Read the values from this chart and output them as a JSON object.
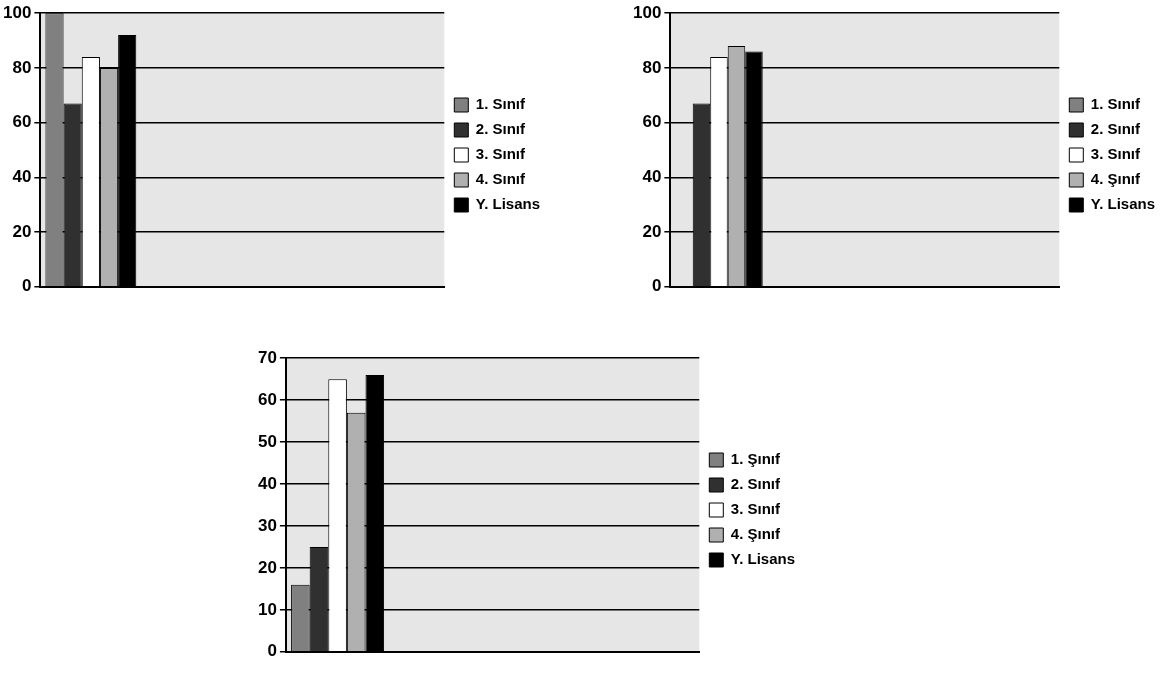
{
  "chart_data": [
    {
      "type": "bar",
      "categories": [
        null,
        null,
        null,
        null
      ],
      "ylim": [
        0,
        100
      ],
      "yticks": [
        0,
        20,
        40,
        60,
        80,
        100
      ],
      "grid": "y",
      "legend": "right",
      "tick_labels": "y",
      "series": [
        {
          "name": "1. Sınıf",
          "color": "#808080",
          "values": [
            100,
            null,
            null,
            null
          ]
        },
        {
          "name": "2. Sınıf",
          "color": "#303030",
          "values": [
            67,
            null,
            null,
            null
          ]
        },
        {
          "name": "3. Sınıf",
          "color": "#ffffff",
          "values": [
            84,
            null,
            null,
            null
          ]
        },
        {
          "name": "4. Sınıf",
          "color": "#b0b0b0",
          "values": [
            80,
            null,
            null,
            null
          ]
        },
        {
          "name": "Y. Lisans",
          "color": "#000000",
          "values": [
            92,
            null,
            null,
            null
          ]
        }
      ]
    },
    {
      "type": "bar",
      "categories": [
        null,
        null,
        null,
        null
      ],
      "ylim": [
        0,
        100
      ],
      "yticks": [
        0,
        20,
        40,
        60,
        80,
        100
      ],
      "grid": "y",
      "legend": "right",
      "tick_labels": "y",
      "series": [
        {
          "name": "1. Sınıf",
          "color": "#808080",
          "values": [
            0,
            null,
            null,
            null
          ]
        },
        {
          "name": "2. Sınıf",
          "color": "#303030",
          "values": [
            67,
            null,
            null,
            null
          ]
        },
        {
          "name": "3. Sınıf",
          "color": "#ffffff",
          "values": [
            84,
            null,
            null,
            null
          ]
        },
        {
          "name": "4. Şınıf",
          "color": "#b0b0b0",
          "values": [
            88,
            null,
            null,
            null
          ]
        },
        {
          "name": "Y. Lisans",
          "color": "#000000",
          "values": [
            86,
            null,
            null,
            null
          ]
        }
      ]
    },
    {
      "type": "bar",
      "categories": [
        null,
        null,
        null,
        null
      ],
      "ylim": [
        0,
        70
      ],
      "yticks": [
        0,
        10,
        20,
        30,
        40,
        50,
        60,
        70
      ],
      "grid": "y",
      "legend": "right",
      "tick_labels": "y",
      "series": [
        {
          "name": "1. Şınıf",
          "color": "#808080",
          "values": [
            16,
            null,
            null,
            null
          ]
        },
        {
          "name": "2. Sınıf",
          "color": "#303030",
          "values": [
            25,
            null,
            null,
            null
          ]
        },
        {
          "name": "3. Sınıf",
          "color": "#ffffff",
          "values": [
            65,
            null,
            null,
            null
          ]
        },
        {
          "name": "4. Şınıf",
          "color": "#b0b0b0",
          "values": [
            57,
            null,
            null,
            null
          ]
        },
        {
          "name": "Y. Lisans",
          "color": "#000000",
          "values": [
            66,
            null,
            null,
            null
          ]
        }
      ]
    }
  ]
}
